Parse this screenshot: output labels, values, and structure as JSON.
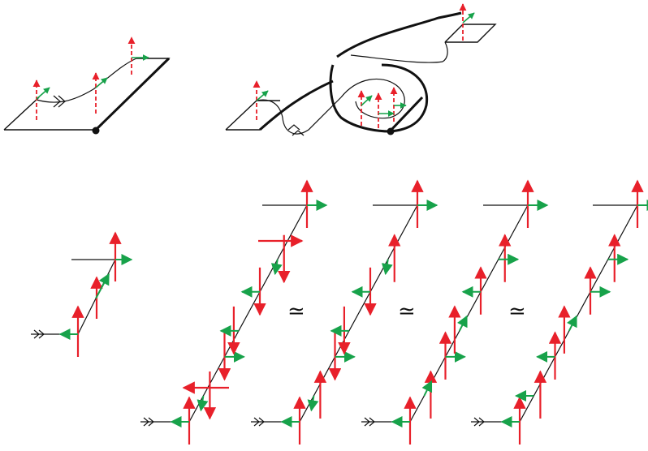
{
  "colors": {
    "red_vector": "#e8202a",
    "green_vector": "#17a24a",
    "line": "#111111",
    "background": "#ffffff"
  },
  "symbols": {
    "equivalence": "≃"
  },
  "panels": {
    "top": [
      "strip-flat",
      "strip-twisted"
    ],
    "bottom": [
      "small-legendrian",
      "sequence-1",
      "sequence-2",
      "sequence-3",
      "sequence-4"
    ]
  },
  "icons": [
    "double-arrowhead-icon",
    "endpoint-dot-icon"
  ]
}
